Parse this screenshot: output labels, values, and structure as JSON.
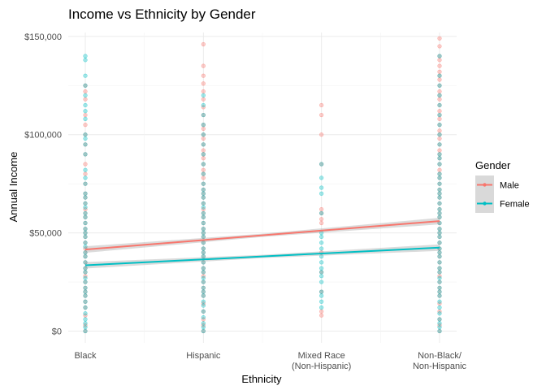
{
  "chart_data": {
    "type": "scatter",
    "title": "Income vs Ethnicity by Gender",
    "xlabel": "Ethnicity",
    "ylabel": "Annual Income",
    "categories": [
      [
        "Black"
      ],
      [
        "Hispanic"
      ],
      [
        "Mixed Race",
        "(Non-Hispanic)"
      ],
      [
        "Non-Black/",
        "Non-Hispanic"
      ]
    ],
    "ylim": [
      -6000,
      152000
    ],
    "yticks": [
      0,
      50000,
      100000,
      150000
    ],
    "ytick_labels": [
      "$0",
      "$50,000",
      "$100,000",
      "$150,000"
    ],
    "grid": true,
    "legend": {
      "title": "Gender",
      "position": "right",
      "entries": [
        "Male",
        "Female"
      ]
    },
    "series": [
      {
        "name": "Male",
        "color": "#F8766D",
        "trend": {
          "x": [
            1,
            4
          ],
          "y": [
            41500,
            56000
          ]
        },
        "points": [
          [
            [
              0,
              3000,
              8000,
              12000,
              15000,
              18000,
              20000,
              22000,
              25000,
              28000,
              30000,
              32000,
              35000,
              38000,
              40000,
              42000,
              45000,
              48000,
              50000,
              52000,
              55000,
              58000,
              60000,
              62000,
              65000,
              68000,
              70000,
              75000,
              80000,
              85000,
              90000,
              95000,
              100000,
              105000,
              110000,
              118000,
              122000,
              125000
            ]
          ],
          [
            [
              0,
              3000,
              6000,
              10000,
              14000,
              18000,
              20000,
              22000,
              25000,
              28000,
              30000,
              32000,
              35000,
              38000,
              40000,
              42000,
              45000,
              48000,
              50000,
              52000,
              55000,
              58000,
              60000,
              62000,
              65000,
              68000,
              70000,
              72000,
              75000,
              78000,
              80000,
              82000,
              85000,
              88000,
              90000,
              92000,
              95000,
              98000,
              100000,
              103000,
              105000,
              110000,
              114000,
              118000,
              122000,
              126000,
              130000,
              135000,
              146000
            ]
          ],
          [
            [
              8000,
              10000,
              20000,
              30000,
              40000,
              55000,
              57000,
              60000,
              62000,
              85000,
              100000,
              110000,
              115000
            ]
          ],
          [
            [
              0,
              3000,
              6000,
              10000,
              14000,
              18000,
              20000,
              22000,
              25000,
              28000,
              30000,
              32000,
              35000,
              38000,
              40000,
              42000,
              45000,
              48000,
              50000,
              52000,
              55000,
              58000,
              60000,
              62000,
              65000,
              68000,
              70000,
              72000,
              75000,
              78000,
              80000,
              82000,
              85000,
              88000,
              90000,
              92000,
              95000,
              98000,
              100000,
              102000,
              105000,
              108000,
              110000,
              112000,
              115000,
              118000,
              120000,
              122000,
              125000,
              128000,
              130000,
              132000,
              135000,
              138000,
              140000,
              145000,
              149000
            ]
          ]
        ]
      },
      {
        "name": "Female",
        "color": "#00BFC4",
        "trend": {
          "x": [
            1,
            4
          ],
          "y": [
            33500,
            42500
          ]
        },
        "points": [
          [
            [
              0,
              2000,
              4000,
              6000,
              9000,
              12000,
              15000,
              18000,
              20000,
              22000,
              25000,
              27000,
              30000,
              32000,
              35000,
              38000,
              40000,
              43000,
              45000,
              48000,
              50000,
              52000,
              55000,
              58000,
              60000,
              63000,
              65000,
              68000,
              70000,
              75000,
              78000,
              82000,
              90000,
              95000,
              98000,
              100000,
              108000,
              112000,
              115000,
              120000,
              125000,
              130000,
              138000,
              140000
            ]
          ],
          [
            [
              0,
              2000,
              4000,
              7000,
              10000,
              13000,
              15000,
              18000,
              20000,
              22000,
              25000,
              27000,
              30000,
              32000,
              35000,
              38000,
              40000,
              42000,
              45000,
              48000,
              50000,
              52000,
              55000,
              58000,
              60000,
              63000,
              65000,
              68000,
              70000,
              72000,
              75000,
              80000,
              85000,
              90000,
              95000,
              100000,
              105000,
              110000,
              115000,
              120000
            ]
          ],
          [
            [
              12000,
              15000,
              18000,
              20000,
              25000,
              28000,
              30000,
              32000,
              35000,
              38000,
              42000,
              45000,
              48000,
              50000,
              60000,
              70000,
              73000,
              78000,
              85000
            ]
          ],
          [
            [
              0,
              2000,
              4000,
              6000,
              9000,
              12000,
              15000,
              18000,
              20000,
              22000,
              25000,
              27000,
              30000,
              32000,
              35000,
              38000,
              40000,
              42000,
              45000,
              48000,
              50000,
              52000,
              55000,
              58000,
              60000,
              62000,
              65000,
              68000,
              70000,
              72000,
              75000,
              78000,
              80000,
              85000,
              88000,
              90000,
              95000,
              100000,
              105000,
              110000,
              115000,
              120000,
              125000,
              130000,
              140000
            ]
          ]
        ]
      }
    ]
  }
}
